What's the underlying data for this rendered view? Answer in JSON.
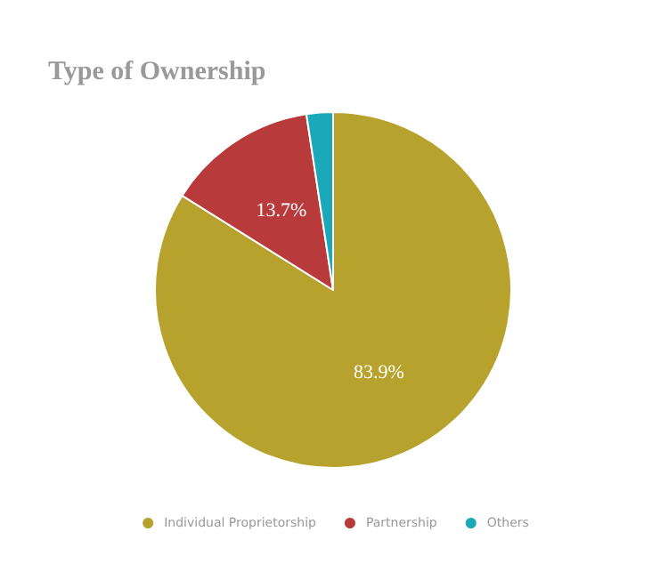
{
  "chart_data": {
    "type": "pie",
    "title": "Type of Ownership",
    "categories": [
      "Individual Proprietorship",
      "Partnership",
      "Others"
    ],
    "values": [
      83.9,
      13.7,
      2.4
    ],
    "colors": [
      "#b8a22e",
      "#b83a3a",
      "#1ba8b8"
    ],
    "value_labels": [
      "83.9%",
      "13.7%",
      null
    ],
    "legend": "bottom"
  }
}
